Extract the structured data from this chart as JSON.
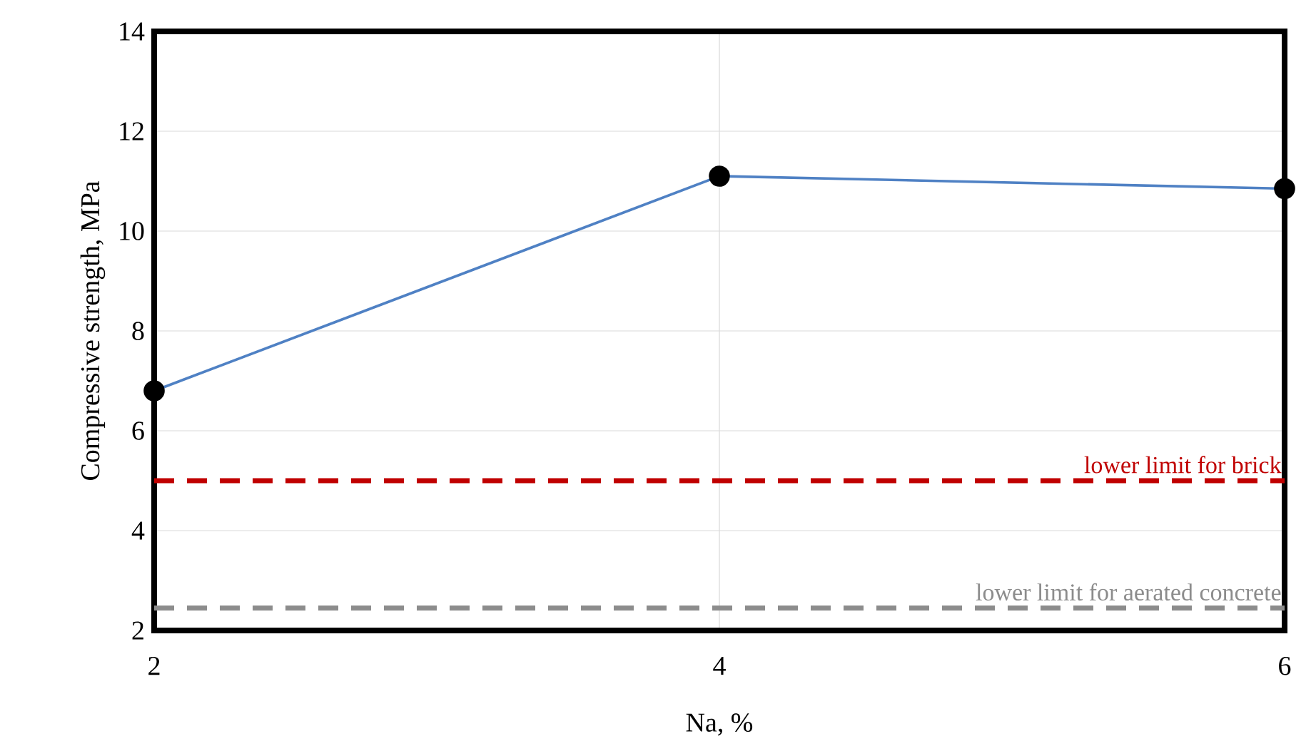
{
  "chart_data": {
    "type": "line",
    "xlabel": "Na, %",
    "ylabel": "Compressive strength, MPa",
    "x": [
      2,
      4,
      6
    ],
    "series": [
      {
        "color": "#4f81c4",
        "values": [
          6.8,
          11.1,
          10.85
        ]
      }
    ],
    "xlim": [
      2,
      6
    ],
    "xticks": [
      2,
      4,
      6
    ],
    "ylim": [
      2,
      14
    ],
    "yticks": [
      2,
      4,
      6,
      8,
      10,
      12,
      14
    ],
    "grid": true,
    "marker": "circle",
    "line_style": "solid",
    "ref_lines": [
      {
        "axis": "y",
        "value": 5,
        "label": "lower limit for brick",
        "color": "#c00000",
        "line_style": "dashed"
      },
      {
        "axis": "y",
        "value": 2.45,
        "label": "lower limit for aerated concrete",
        "color": "#8c8c8c",
        "line_style": "dashed"
      }
    ]
  }
}
